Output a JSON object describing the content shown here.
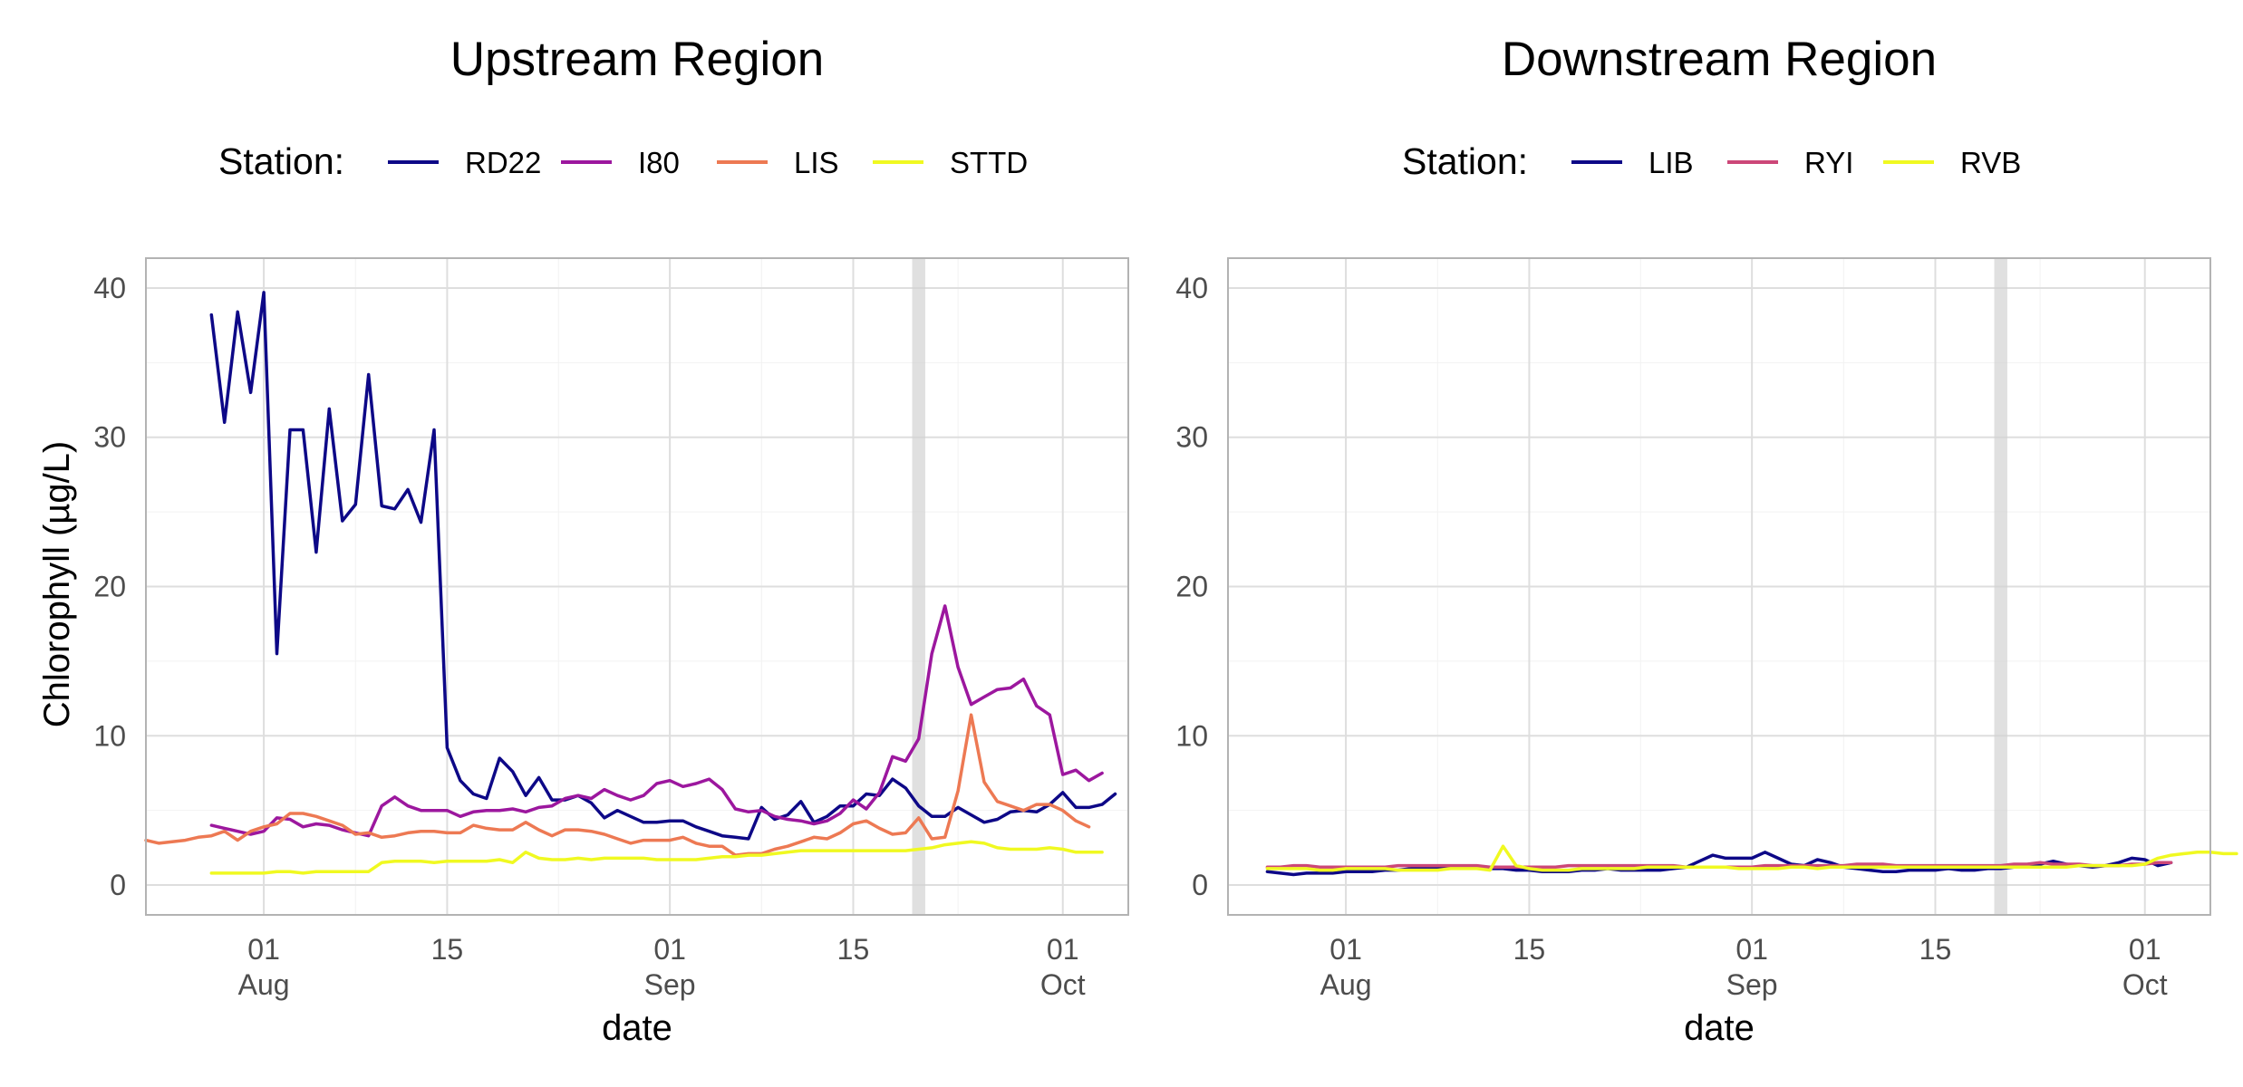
{
  "figure": {
    "ylabel": "Chlorophyll (µg/L)",
    "xlabel": "date",
    "legend_title": "Station:"
  },
  "shaded_date": "2021-09-20",
  "chart_data": [
    {
      "type": "line",
      "title": "Upstream Region",
      "xlabel": "date",
      "ylabel": "Chlorophyll (µg/L)",
      "xlim": [
        "2021-07-23",
        "2021-10-06"
      ],
      "ylim": [
        -2,
        42
      ],
      "yticks": [
        0,
        10,
        20,
        30,
        40
      ],
      "xticks": [
        {
          "date": "2021-08-01",
          "day": "01",
          "month": "Aug"
        },
        {
          "date": "2021-08-15",
          "day": "15",
          "month": ""
        },
        {
          "date": "2021-09-01",
          "day": "01",
          "month": "Sep"
        },
        {
          "date": "2021-09-15",
          "day": "15",
          "month": ""
        },
        {
          "date": "2021-10-01",
          "day": "01",
          "month": "Oct"
        }
      ],
      "grid": true,
      "legend_position": "top",
      "series": [
        {
          "name": "RD22",
          "color": "#0d0887",
          "start": "2021-07-28",
          "values": [
            38.2,
            31.0,
            38.4,
            33.0,
            39.7,
            15.5,
            30.5,
            30.5,
            22.3,
            31.9,
            24.4,
            25.5,
            34.2,
            25.4,
            25.2,
            26.5,
            24.3,
            30.5,
            9.2,
            7.0,
            6.1,
            5.8,
            8.5,
            7.6,
            6.0,
            7.2,
            5.7,
            5.7,
            6.0,
            5.5,
            4.5,
            5.0,
            4.6,
            4.2,
            4.2,
            4.3,
            4.3,
            3.9,
            3.6,
            3.3,
            3.2,
            3.1,
            5.2,
            4.4,
            4.7,
            5.6,
            4.2,
            4.6,
            5.3,
            5.3,
            6.1,
            6.0,
            7.1,
            6.5,
            5.3,
            4.6,
            4.6,
            5.2,
            4.7,
            4.2,
            4.4,
            4.9,
            5.0,
            4.9,
            5.4,
            6.2,
            5.2,
            5.2,
            5.4,
            6.1
          ]
        },
        {
          "name": "I80",
          "color": "#9c179e",
          "start": "2021-07-28",
          "values": [
            4.0,
            3.8,
            3.6,
            3.4,
            3.6,
            4.5,
            4.4,
            3.9,
            4.1,
            4.0,
            3.7,
            3.5,
            3.3,
            5.3,
            5.9,
            5.3,
            5.0,
            5.0,
            5.0,
            4.6,
            4.9,
            5.0,
            5.0,
            5.1,
            4.9,
            5.2,
            5.3,
            5.8,
            6.0,
            5.8,
            6.4,
            6.0,
            5.7,
            6.0,
            6.8,
            7.0,
            6.6,
            6.8,
            7.1,
            6.4,
            5.1,
            4.9,
            5.0,
            4.6,
            4.4,
            4.3,
            4.1,
            4.3,
            4.8,
            5.7,
            5.1,
            6.2,
            8.6,
            8.3,
            9.8,
            15.5,
            18.7,
            14.6,
            12.1,
            12.6,
            13.1,
            13.2,
            13.8,
            12.0,
            11.4,
            7.4,
            7.7,
            7.0,
            7.5
          ]
        },
        {
          "name": "LIS",
          "color": "#ed7953",
          "start": "2021-07-23",
          "values": [
            3.0,
            2.8,
            2.9,
            3.0,
            3.2,
            3.3,
            3.6,
            3.0,
            3.6,
            3.9,
            4.1,
            4.8,
            4.8,
            4.6,
            4.3,
            4.0,
            3.4,
            3.5,
            3.2,
            3.3,
            3.5,
            3.6,
            3.6,
            3.5,
            3.5,
            4.0,
            3.8,
            3.7,
            3.7,
            4.2,
            3.7,
            3.3,
            3.7,
            3.7,
            3.6,
            3.4,
            3.1,
            2.8,
            3.0,
            3.0,
            3.0,
            3.2,
            2.8,
            2.6,
            2.6,
            2.0,
            2.1,
            2.1,
            2.4,
            2.6,
            2.9,
            3.2,
            3.1,
            3.5,
            4.1,
            4.3,
            3.8,
            3.4,
            3.5,
            4.5,
            3.1,
            3.2,
            6.3,
            11.4,
            6.9,
            5.6,
            5.3,
            5.0,
            5.4,
            5.4,
            5.0,
            4.3,
            3.9
          ]
        },
        {
          "name": "STTD",
          "color": "#f0f921",
          "start": "2021-07-28",
          "values": [
            0.8,
            0.8,
            0.8,
            0.8,
            0.8,
            0.9,
            0.9,
            0.8,
            0.9,
            0.9,
            0.9,
            0.9,
            0.9,
            1.5,
            1.6,
            1.6,
            1.6,
            1.5,
            1.6,
            1.6,
            1.6,
            1.6,
            1.7,
            1.5,
            2.2,
            1.8,
            1.7,
            1.7,
            1.8,
            1.7,
            1.8,
            1.8,
            1.8,
            1.8,
            1.7,
            1.7,
            1.7,
            1.7,
            1.8,
            1.9,
            1.9,
            2.0,
            2.0,
            2.1,
            2.2,
            2.3,
            2.3,
            2.3,
            2.3,
            2.3,
            2.3,
            2.3,
            2.3,
            2.3,
            2.4,
            2.5,
            2.7,
            2.8,
            2.9,
            2.8,
            2.5,
            2.4,
            2.4,
            2.4,
            2.5,
            2.4,
            2.2,
            2.2,
            2.2
          ]
        }
      ]
    },
    {
      "type": "line",
      "title": "Downstream Region",
      "xlabel": "date",
      "ylabel": "",
      "xlim": [
        "2021-07-23",
        "2021-10-06"
      ],
      "ylim": [
        -2,
        42
      ],
      "yticks": [
        0,
        10,
        20,
        30,
        40
      ],
      "xticks": [
        {
          "date": "2021-08-01",
          "day": "01",
          "month": "Aug"
        },
        {
          "date": "2021-08-15",
          "day": "15",
          "month": ""
        },
        {
          "date": "2021-09-01",
          "day": "01",
          "month": "Sep"
        },
        {
          "date": "2021-09-15",
          "day": "15",
          "month": ""
        },
        {
          "date": "2021-10-01",
          "day": "01",
          "month": "Oct"
        }
      ],
      "grid": true,
      "legend_position": "top",
      "series": [
        {
          "name": "LIB",
          "color": "#0d0887",
          "start": "2021-07-26",
          "values": [
            0.9,
            0.8,
            0.7,
            0.8,
            0.8,
            0.8,
            0.9,
            0.9,
            0.9,
            1.0,
            1.0,
            1.1,
            1.1,
            1.1,
            1.2,
            1.2,
            1.2,
            1.1,
            1.1,
            1.0,
            1.0,
            0.9,
            0.9,
            0.9,
            1.0,
            1.0,
            1.1,
            1.0,
            1.0,
            1.0,
            1.0,
            1.1,
            1.2,
            1.6,
            2.0,
            1.8,
            1.8,
            1.8,
            2.2,
            1.8,
            1.4,
            1.3,
            1.7,
            1.5,
            1.2,
            1.1,
            1.0,
            0.9,
            0.9,
            1.0,
            1.0,
            1.0,
            1.1,
            1.0,
            1.0,
            1.1,
            1.1,
            1.2,
            1.3,
            1.4,
            1.6,
            1.4,
            1.3,
            1.2,
            1.3,
            1.5,
            1.8,
            1.7,
            1.3,
            1.5
          ]
        },
        {
          "name": "RYI",
          "color": "#cc4778",
          "start": "2021-07-26",
          "values": [
            1.2,
            1.2,
            1.3,
            1.3,
            1.2,
            1.2,
            1.2,
            1.2,
            1.2,
            1.2,
            1.3,
            1.3,
            1.3,
            1.3,
            1.3,
            1.3,
            1.3,
            1.2,
            1.2,
            1.2,
            1.2,
            1.2,
            1.2,
            1.3,
            1.3,
            1.3,
            1.3,
            1.3,
            1.3,
            1.3,
            1.3,
            1.3,
            1.2,
            1.2,
            1.2,
            1.2,
            1.2,
            1.2,
            1.3,
            1.3,
            1.3,
            1.3,
            1.3,
            1.3,
            1.3,
            1.4,
            1.4,
            1.4,
            1.3,
            1.3,
            1.3,
            1.3,
            1.3,
            1.3,
            1.3,
            1.3,
            1.3,
            1.4,
            1.4,
            1.5,
            1.4,
            1.4,
            1.4,
            1.3,
            1.3,
            1.3,
            1.4,
            1.4,
            1.5,
            1.5
          ]
        },
        {
          "name": "RVB",
          "color": "#f0f921",
          "start": "2021-07-26",
          "values": [
            1.1,
            1.1,
            1.1,
            1.1,
            1.0,
            1.0,
            1.1,
            1.1,
            1.1,
            1.1,
            1.0,
            1.0,
            1.0,
            1.0,
            1.1,
            1.1,
            1.1,
            1.0,
            2.6,
            1.3,
            1.1,
            1.0,
            1.0,
            1.0,
            1.1,
            1.1,
            1.1,
            1.1,
            1.1,
            1.2,
            1.2,
            1.2,
            1.2,
            1.2,
            1.2,
            1.2,
            1.1,
            1.1,
            1.1,
            1.1,
            1.2,
            1.2,
            1.1,
            1.2,
            1.2,
            1.2,
            1.2,
            1.2,
            1.2,
            1.2,
            1.2,
            1.2,
            1.2,
            1.2,
            1.2,
            1.2,
            1.2,
            1.2,
            1.2,
            1.2,
            1.2,
            1.2,
            1.3,
            1.3,
            1.3,
            1.3,
            1.3,
            1.4,
            1.8,
            2.0,
            2.1,
            2.2,
            2.2,
            2.1,
            2.1
          ]
        }
      ]
    }
  ]
}
